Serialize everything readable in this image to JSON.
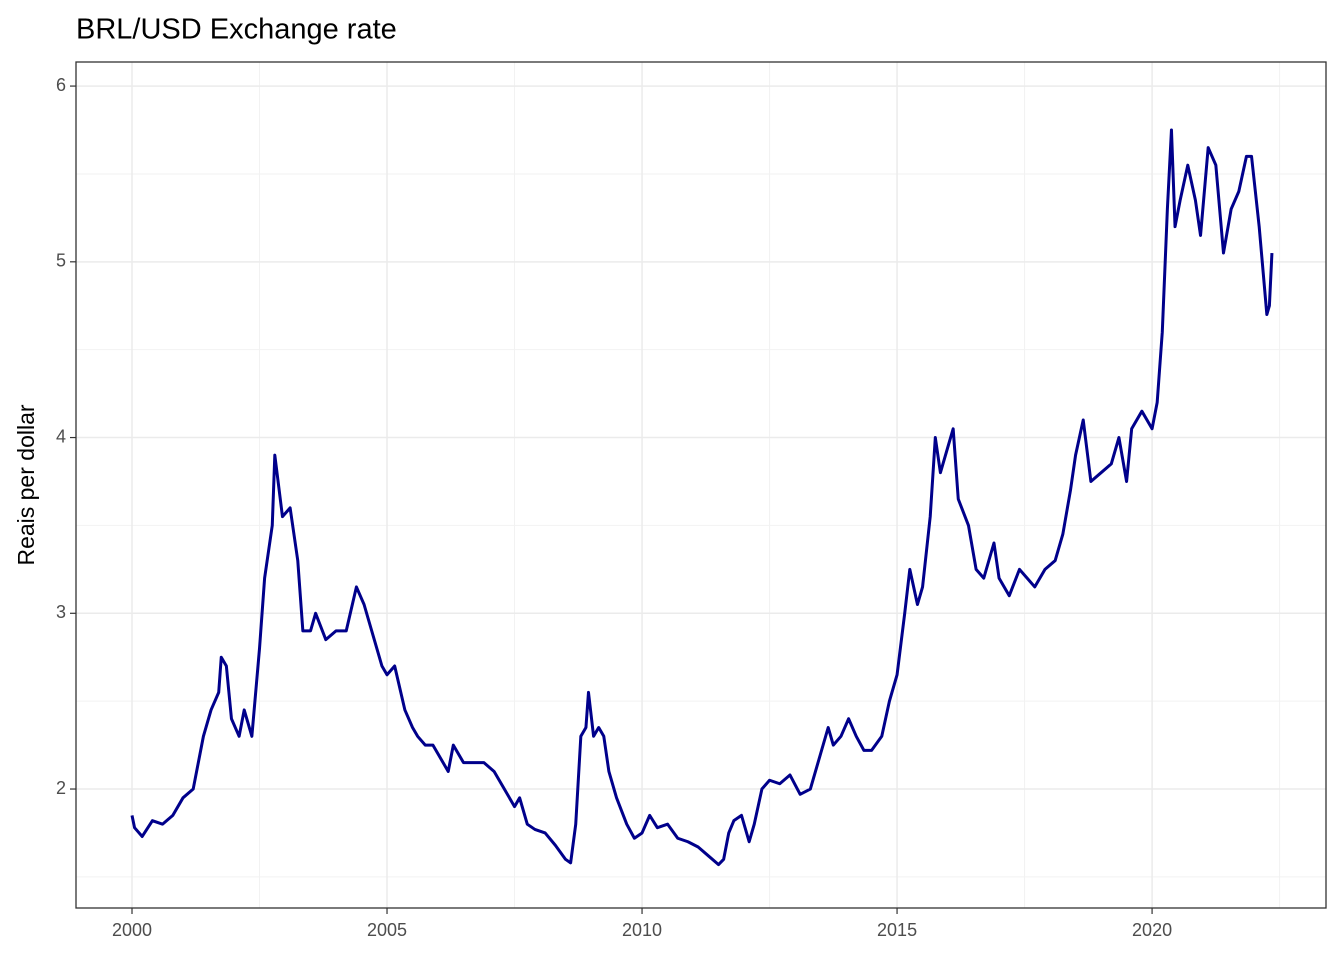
{
  "chart_data": {
    "type": "line",
    "title": "BRL/USD Exchange rate",
    "y_label": "Reais per dollar",
    "xlim": [
      1998.902,
      2023.41
    ],
    "ylim": [
      1.323,
      6.137
    ],
    "xticks": [
      2000,
      2005,
      2010,
      2015,
      2020
    ],
    "yticks": [
      2,
      3,
      4,
      5,
      6
    ],
    "x_minor_ticks": [
      2002.5,
      2007.5,
      2012.5,
      2017.5,
      2022.5
    ],
    "y_minor_ticks": [
      1.5,
      2.5,
      3.5,
      4.5,
      5.5
    ],
    "grid": true,
    "series": [
      {
        "color": "#00008b",
        "x": [
          2000.0,
          2000.05,
          2000.2,
          2000.4,
          2000.6,
          2000.8,
          2001.0,
          2001.2,
          2001.4,
          2001.55,
          2001.7,
          2001.75,
          2001.85,
          2001.95,
          2002.1,
          2002.2,
          2002.35,
          2002.5,
          2002.6,
          2002.75,
          2002.8,
          2002.95,
          2003.1,
          2003.25,
          2003.35,
          2003.5,
          2003.6,
          2003.8,
          2004.0,
          2004.2,
          2004.4,
          2004.55,
          2004.7,
          2004.9,
          2005.0,
          2005.15,
          2005.35,
          2005.5,
          2005.6,
          2005.75,
          2005.9,
          2006.0,
          2006.2,
          2006.3,
          2006.5,
          2006.7,
          2006.9,
          2007.1,
          2007.3,
          2007.5,
          2007.6,
          2007.75,
          2007.9,
          2008.1,
          2008.3,
          2008.5,
          2008.6,
          2008.7,
          2008.8,
          2008.9,
          2008.95,
          2009.05,
          2009.15,
          2009.25,
          2009.35,
          2009.5,
          2009.7,
          2009.85,
          2010.0,
          2010.15,
          2010.3,
          2010.5,
          2010.7,
          2010.9,
          2011.1,
          2011.3,
          2011.5,
          2011.6,
          2011.7,
          2011.8,
          2011.95,
          2012.1,
          2012.2,
          2012.35,
          2012.5,
          2012.7,
          2012.9,
          2013.1,
          2013.3,
          2013.5,
          2013.65,
          2013.75,
          2013.9,
          2014.05,
          2014.2,
          2014.35,
          2014.5,
          2014.7,
          2014.85,
          2015.0,
          2015.15,
          2015.25,
          2015.4,
          2015.5,
          2015.65,
          2015.75,
          2015.85,
          2016.0,
          2016.1,
          2016.2,
          2016.4,
          2016.55,
          2016.7,
          2016.9,
          2017.0,
          2017.2,
          2017.4,
          2017.55,
          2017.7,
          2017.9,
          2018.1,
          2018.25,
          2018.4,
          2018.5,
          2018.65,
          2018.8,
          2019.0,
          2019.2,
          2019.35,
          2019.5,
          2019.6,
          2019.8,
          2020.0,
          2020.1,
          2020.2,
          2020.3,
          2020.38,
          2020.45,
          2020.55,
          2020.7,
          2020.85,
          2020.95,
          2021.1,
          2021.25,
          2021.4,
          2021.55,
          2021.7,
          2021.85,
          2021.95,
          2022.1,
          2022.25,
          2022.3,
          2022.35
        ],
        "values": [
          1.85,
          1.78,
          1.73,
          1.82,
          1.8,
          1.85,
          1.95,
          2.0,
          2.3,
          2.45,
          2.55,
          2.75,
          2.7,
          2.4,
          2.3,
          2.45,
          2.3,
          2.8,
          3.2,
          3.5,
          3.9,
          3.55,
          3.6,
          3.3,
          2.9,
          2.9,
          3.0,
          2.85,
          2.9,
          2.9,
          3.15,
          3.05,
          2.9,
          2.7,
          2.65,
          2.7,
          2.45,
          2.35,
          2.3,
          2.25,
          2.25,
          2.2,
          2.1,
          2.25,
          2.15,
          2.15,
          2.15,
          2.1,
          2.0,
          1.9,
          1.95,
          1.8,
          1.77,
          1.75,
          1.68,
          1.6,
          1.58,
          1.8,
          2.3,
          2.35,
          2.55,
          2.3,
          2.35,
          2.3,
          2.1,
          1.95,
          1.8,
          1.72,
          1.75,
          1.85,
          1.78,
          1.8,
          1.72,
          1.7,
          1.67,
          1.62,
          1.57,
          1.6,
          1.75,
          1.82,
          1.85,
          1.7,
          1.8,
          2.0,
          2.05,
          2.03,
          2.08,
          1.97,
          2.0,
          2.2,
          2.35,
          2.25,
          2.3,
          2.4,
          2.3,
          2.22,
          2.22,
          2.3,
          2.5,
          2.65,
          3.0,
          3.25,
          3.05,
          3.15,
          3.55,
          4.0,
          3.8,
          3.95,
          4.05,
          3.65,
          3.5,
          3.25,
          3.2,
          3.4,
          3.2,
          3.1,
          3.25,
          3.2,
          3.15,
          3.25,
          3.3,
          3.45,
          3.7,
          3.9,
          4.1,
          3.75,
          3.8,
          3.85,
          4.0,
          3.75,
          4.05,
          4.15,
          4.05,
          4.2,
          4.6,
          5.3,
          5.75,
          5.2,
          5.35,
          5.55,
          5.35,
          5.15,
          5.65,
          5.55,
          5.05,
          5.3,
          5.4,
          5.6,
          5.6,
          5.2,
          4.7,
          4.75,
          5.05
        ]
      }
    ]
  }
}
